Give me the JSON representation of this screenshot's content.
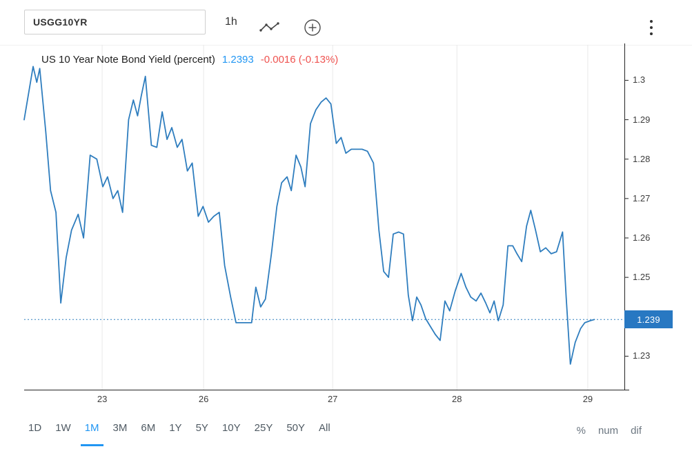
{
  "topbar": {
    "symbol": "USGG10YR",
    "interval": "1h"
  },
  "legend": {
    "title": "US 10 Year Note Bond Yield (percent)",
    "last_value": "1.2393",
    "change": "-0.0016 (-0.13%)"
  },
  "ranges": [
    "1D",
    "1W",
    "1M",
    "3M",
    "6M",
    "1Y",
    "5Y",
    "10Y",
    "25Y",
    "50Y",
    "All"
  ],
  "active_range": "1M",
  "modes": [
    "%",
    "num",
    "dif"
  ],
  "colors": {
    "line": "#2e7dbe",
    "accent": "#2196f3",
    "negative": "#ef5350",
    "badge": "#2878c2",
    "grid": "#e9e9e9",
    "axis": "#222222"
  },
  "chart_data": {
    "type": "line",
    "title": "US 10 Year Note Bond Yield (percent)",
    "interval": "1h",
    "current_value": 1.2393,
    "current_value_label": "1.239",
    "change": -0.0016,
    "change_pct": "-0.13%",
    "ylim": [
      1.2215,
      1.309
    ],
    "grid": "vertical-only",
    "legend_position": "top-left-inline",
    "y_ticks": [
      {
        "label": "1.3",
        "value": 1.3
      },
      {
        "label": "1.29",
        "value": 1.29
      },
      {
        "label": "1.28",
        "value": 1.28
      },
      {
        "label": "1.27",
        "value": 1.27
      },
      {
        "label": "1.26",
        "value": 1.26
      },
      {
        "label": "1.25",
        "value": 1.25
      },
      {
        "label": "1.23",
        "value": 1.23
      }
    ],
    "x_ticks": [
      {
        "label": "23",
        "pos": 0.13
      },
      {
        "label": "26",
        "pos": 0.299
      },
      {
        "label": "27",
        "pos": 0.514
      },
      {
        "label": "28",
        "pos": 0.721
      },
      {
        "label": "29",
        "pos": 0.939
      }
    ],
    "series": [
      {
        "name": "US 10 Year Note Bond Yield",
        "color": "#2e7dbe",
        "points": [
          [
            0.0,
            1.29
          ],
          [
            0.015,
            1.3035
          ],
          [
            0.021,
            1.2995
          ],
          [
            0.026,
            1.303
          ],
          [
            0.036,
            1.287
          ],
          [
            0.044,
            1.272
          ],
          [
            0.053,
            1.2665
          ],
          [
            0.061,
            1.2435
          ],
          [
            0.07,
            1.255
          ],
          [
            0.079,
            1.262
          ],
          [
            0.09,
            1.266
          ],
          [
            0.099,
            1.26
          ],
          [
            0.11,
            1.281
          ],
          [
            0.121,
            1.28
          ],
          [
            0.131,
            1.273
          ],
          [
            0.139,
            1.2755
          ],
          [
            0.148,
            1.27
          ],
          [
            0.156,
            1.272
          ],
          [
            0.164,
            1.2665
          ],
          [
            0.174,
            1.29
          ],
          [
            0.182,
            1.295
          ],
          [
            0.189,
            1.291
          ],
          [
            0.195,
            1.296
          ],
          [
            0.202,
            1.301
          ],
          [
            0.212,
            1.2835
          ],
          [
            0.221,
            1.283
          ],
          [
            0.23,
            1.292
          ],
          [
            0.238,
            1.285
          ],
          [
            0.246,
            1.288
          ],
          [
            0.255,
            1.283
          ],
          [
            0.263,
            1.285
          ],
          [
            0.272,
            1.277
          ],
          [
            0.28,
            1.279
          ],
          [
            0.29,
            1.2655
          ],
          [
            0.298,
            1.268
          ],
          [
            0.307,
            1.264
          ],
          [
            0.316,
            1.2655
          ],
          [
            0.325,
            1.2665
          ],
          [
            0.334,
            1.253
          ],
          [
            0.344,
            1.245
          ],
          [
            0.353,
            1.2385
          ],
          [
            0.362,
            1.2385
          ],
          [
            0.371,
            1.2385
          ],
          [
            0.379,
            1.2385
          ],
          [
            0.386,
            1.2475
          ],
          [
            0.394,
            1.2425
          ],
          [
            0.402,
            1.2445
          ],
          [
            0.412,
            1.256
          ],
          [
            0.421,
            1.268
          ],
          [
            0.429,
            1.274
          ],
          [
            0.438,
            1.2755
          ],
          [
            0.445,
            1.272
          ],
          [
            0.453,
            1.281
          ],
          [
            0.461,
            1.278
          ],
          [
            0.468,
            1.273
          ],
          [
            0.477,
            1.289
          ],
          [
            0.486,
            1.2925
          ],
          [
            0.495,
            1.2945
          ],
          [
            0.503,
            1.2955
          ],
          [
            0.511,
            1.294
          ],
          [
            0.52,
            1.284
          ],
          [
            0.528,
            1.2855
          ],
          [
            0.536,
            1.2815
          ],
          [
            0.545,
            1.2825
          ],
          [
            0.554,
            1.2825
          ],
          [
            0.563,
            1.2825
          ],
          [
            0.572,
            1.282
          ],
          [
            0.582,
            1.279
          ],
          [
            0.591,
            1.262
          ],
          [
            0.599,
            1.2515
          ],
          [
            0.607,
            1.25
          ],
          [
            0.615,
            1.261
          ],
          [
            0.624,
            1.2615
          ],
          [
            0.632,
            1.261
          ],
          [
            0.64,
            1.2455
          ],
          [
            0.647,
            1.239
          ],
          [
            0.654,
            1.245
          ],
          [
            0.661,
            1.243
          ],
          [
            0.669,
            1.2395
          ],
          [
            0.677,
            1.2375
          ],
          [
            0.685,
            1.2355
          ],
          [
            0.693,
            1.234
          ],
          [
            0.701,
            1.244
          ],
          [
            0.709,
            1.2415
          ],
          [
            0.718,
            1.2465
          ],
          [
            0.728,
            1.251
          ],
          [
            0.736,
            1.2475
          ],
          [
            0.744,
            1.245
          ],
          [
            0.753,
            1.244
          ],
          [
            0.761,
            1.246
          ],
          [
            0.769,
            1.2435
          ],
          [
            0.776,
            1.241
          ],
          [
            0.783,
            1.244
          ],
          [
            0.79,
            1.239
          ],
          [
            0.798,
            1.243
          ],
          [
            0.806,
            1.258
          ],
          [
            0.814,
            1.258
          ],
          [
            0.821,
            1.256
          ],
          [
            0.829,
            1.254
          ],
          [
            0.837,
            1.263
          ],
          [
            0.844,
            1.267
          ],
          [
            0.852,
            1.262
          ],
          [
            0.86,
            1.2565
          ],
          [
            0.869,
            1.2575
          ],
          [
            0.878,
            1.256
          ],
          [
            0.887,
            1.2565
          ],
          [
            0.897,
            1.2615
          ],
          [
            0.903,
            1.245
          ],
          [
            0.91,
            1.228
          ],
          [
            0.918,
            1.2335
          ],
          [
            0.927,
            1.237
          ],
          [
            0.934,
            1.2385
          ],
          [
            0.943,
            1.239
          ],
          [
            0.95,
            1.2393
          ]
        ]
      }
    ]
  }
}
